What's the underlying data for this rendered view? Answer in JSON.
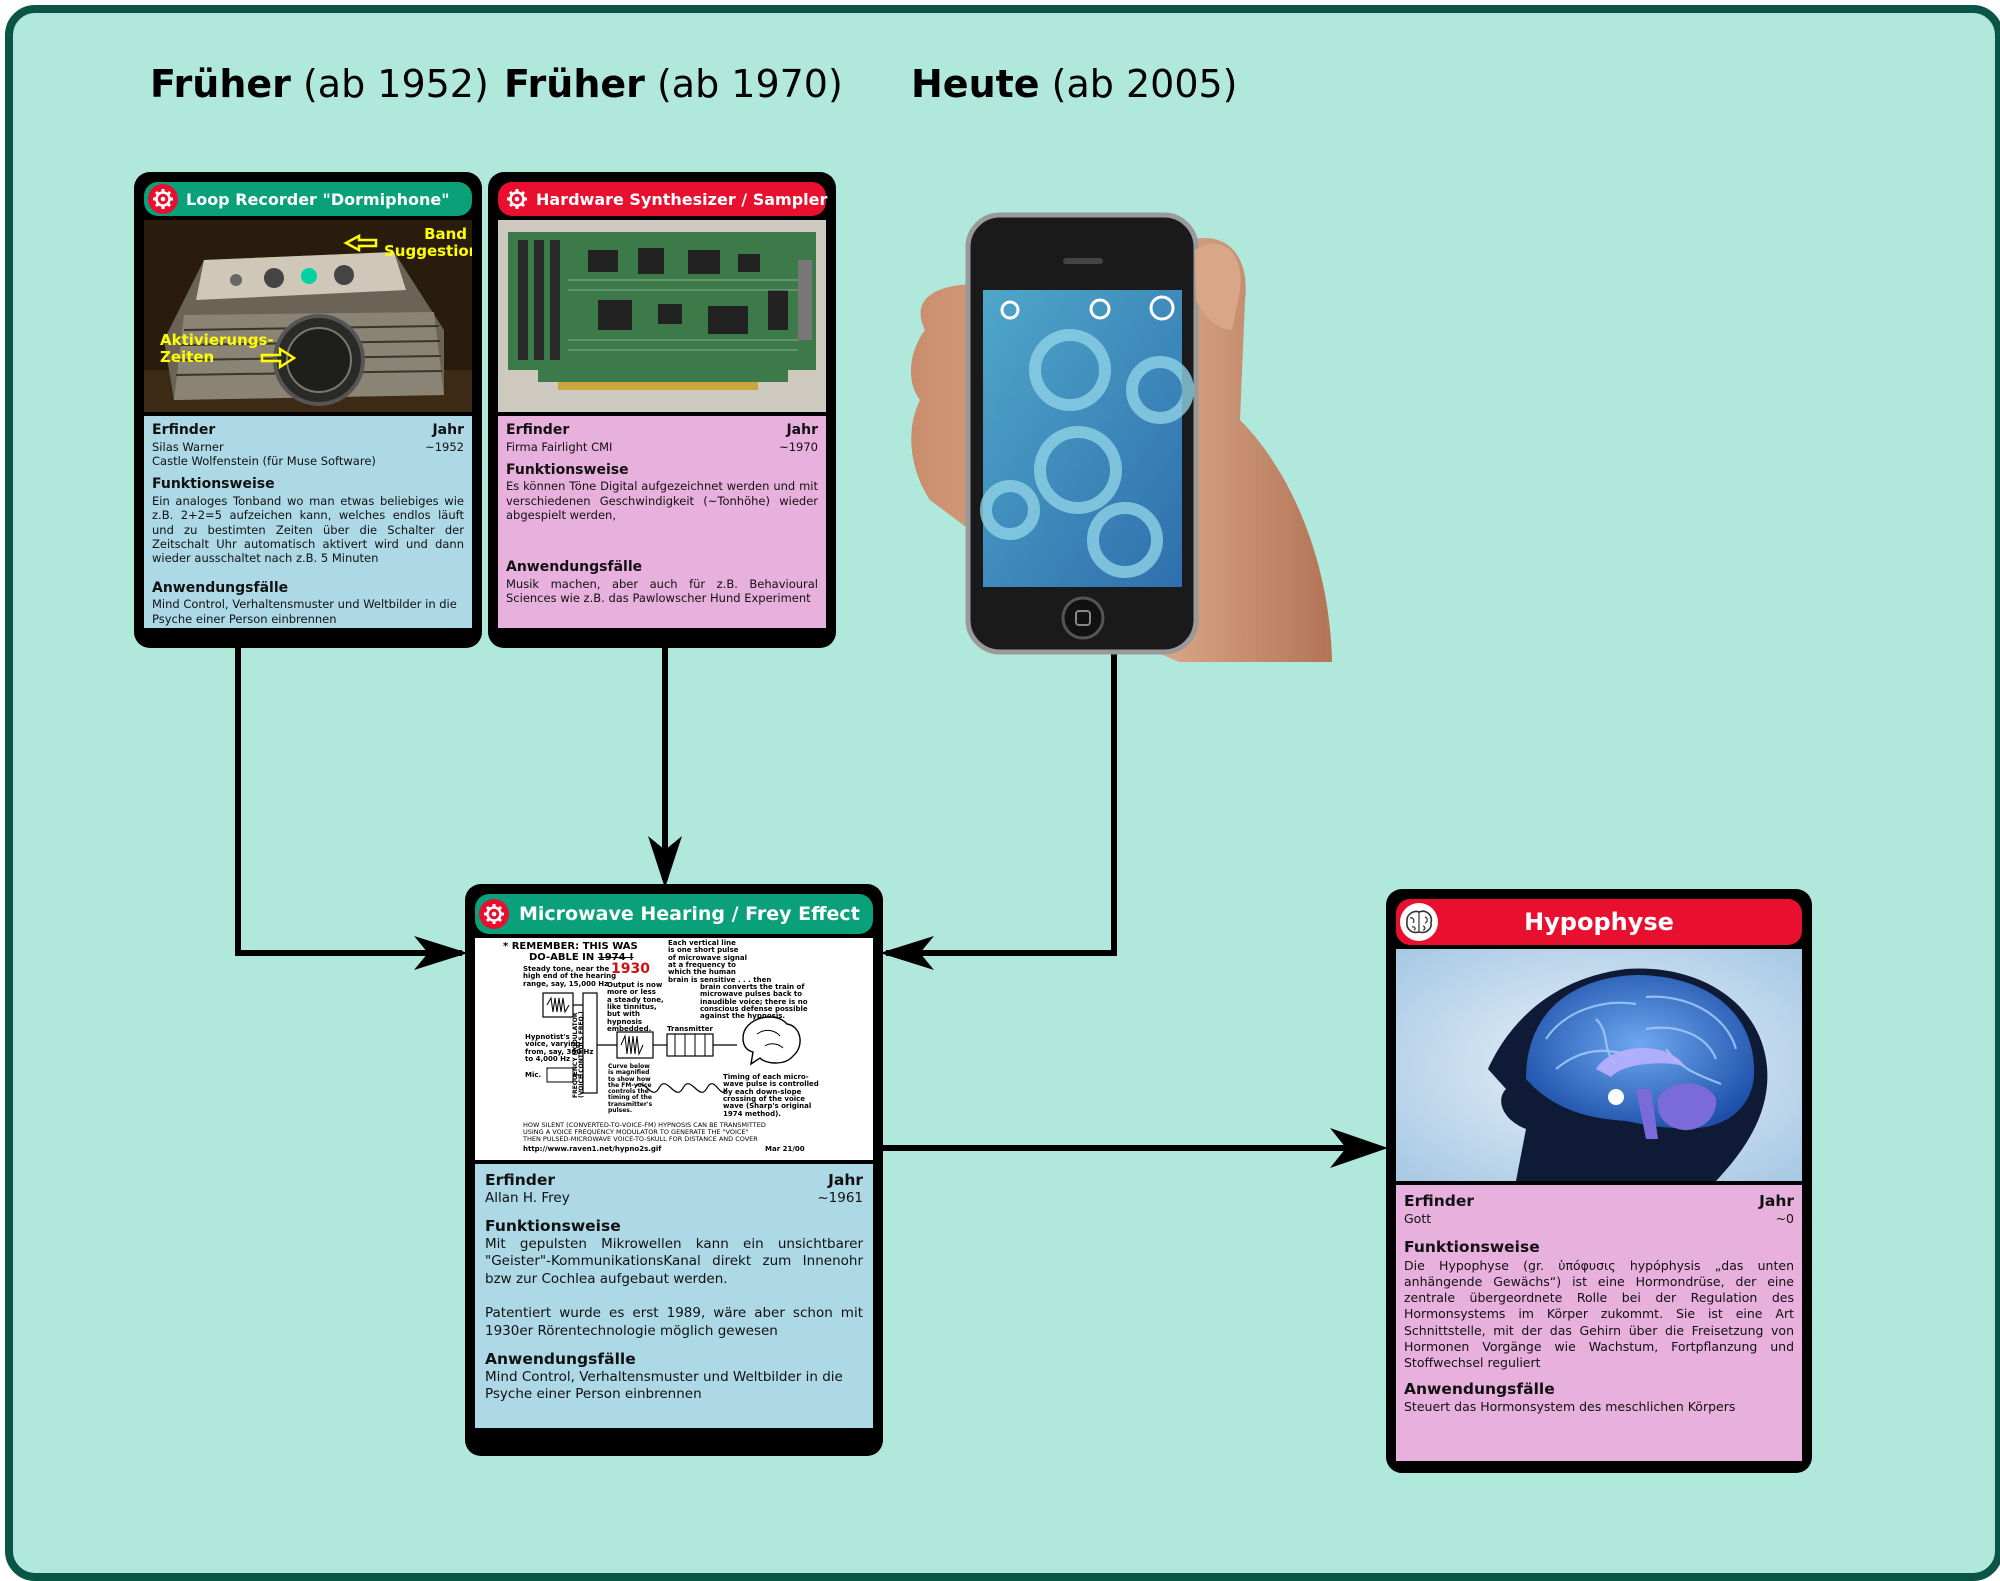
{
  "headings": {
    "h1952": {
      "bold": "Früher",
      "rest": " (ab 1952)"
    },
    "h1970": {
      "bold": "Früher",
      "rest": " (ab 1970)"
    },
    "h2005": {
      "bold": "Heute",
      "rest": " (ab 2005)"
    }
  },
  "colors": {
    "panel": "#b1e8dc",
    "border": "#0b5546",
    "green_title": "#0aa07a",
    "red_title": "#e8102e",
    "blue_info": "#add8e6",
    "pink_info": "#e8b0dc"
  },
  "card_dormiphone": {
    "title": "Loop Recorder \"Dormiphone\"",
    "annot_band": "Band mit\nSuggestionen",
    "annot_aktiv": "Aktivierungs-\nZeiten",
    "erfinder_label": "Erfinder",
    "jahr_label": "Jahr",
    "erfinder": "Silas Warner\nCastle Wolfenstein (für Muse Software)",
    "jahr": "~1952",
    "funktion_label": "Funktionsweise",
    "funktion": "Ein analoges Tonband wo man etwas beliebiges wie z.B. 2+2=5 aufzeichen kann, welches endlos läuft und zu bestimten Zeiten über die Schalter der Zeitschalt Uhr automatisch aktivert wird und dann wieder ausschaltet nach z.B. 5 Minuten",
    "anwendung_label": "Anwendungsfälle",
    "anwendung": "Mind Control, Verhaltensmuster und Weltbilder in die Psyche einer Person einbrennen"
  },
  "card_synth": {
    "title": "Hardware Synthesizer / Sampler",
    "erfinder_label": "Erfinder",
    "jahr_label": "Jahr",
    "erfinder": "Firma Fairlight CMI",
    "jahr": "~1970",
    "funktion_label": "Funktionsweise",
    "funktion": "Es können Töne Digital aufgezeichnet werden und mit verschiedenen Geschwindigkeit (~Tonhöhe) wieder abgespielt werden,",
    "anwendung_label": "Anwendungsfälle",
    "anwendung": "Musik machen, aber auch für z.B. Behavioural Sciences wie z.B. das Pawlowscher Hund Experiment"
  },
  "card_microwave": {
    "title": "Microwave Hearing / Frey Effect",
    "diagram": {
      "remember": "* REMEMBER: THIS WAS",
      "doable": "DO-ABLE IN",
      "year_struck": "1974 !",
      "year_new": "1930",
      "steady": "Steady tone, near the\nhigh end of the hearing\nrange, say, 15,000 Hz",
      "output": "Output is now\nmore or less\na steady tone,\nlike tinnitus,\nbut with\nhypnosis\nembedded.",
      "vertical": "Each vertical line\nis one short pulse\nof microwave signal\nat a frequency to\nwhich the human\nbrain is sensitive . . . then",
      "brain": "brain converts the train of\nmicrowave pulses back to\ninaudible voice; there is no\nconscious defense possible\nagainst the hypnosis.",
      "hypnotist": "Hypnotist's\nvoice, varying\nfrom, say, 300 Hz\nto 4,000 Hz",
      "mic": "Mic.",
      "modulator": "FREQUENCY MODULATOR\n(VOICE CONTROLS FREQ.)",
      "transmitter": "Transmitter",
      "curve": "Curve below\nis magnified\nto show how\nthe FM-voice\ncontrols the\ntiming of the\ntransmitter's\npulses.",
      "timing": "Timing of each micro-\nwave pulse is controlled\nby each down-slope\ncrossing of the voice\nwave (Sharp's original\n1974 method).",
      "footer": "HOW SILENT (CONVERTED-TO-VOICE-FM) HYPNOSIS CAN BE TRANSMITTED\nUSING A VOICE FREQUENCY MODULATOR TO GENERATE THE \"VOICE\"\nTHEN PULSED-MICROWAVE VOICE-TO-SKULL FOR DISTANCE AND COVER",
      "url": "http://www.raven1.net/hypno2s.gif",
      "date": "Mar 21/00"
    },
    "erfinder_label": "Erfinder",
    "jahr_label": "Jahr",
    "erfinder": "Allan H. Frey",
    "jahr": "~1961",
    "funktion_label": "Funktionsweise",
    "funktion": "Mit gepulsten Mikrowellen kann ein unsichtbarer \"Geister\"-KommunikationsKanal direkt zum Innenohr bzw zur Cochlea aufgebaut werden.",
    "patent": "Patentiert wurde es erst 1989, wäre aber schon mit 1930er Rörentechnologie möglich gewesen",
    "anwendung_label": "Anwendungsfälle",
    "anwendung": "Mind Control, Verhaltensmuster und Weltbilder in die Psyche einer Person einbrennen"
  },
  "card_hypophyse": {
    "title": "Hypophyse",
    "erfinder_label": "Erfinder",
    "jahr_label": "Jahr",
    "erfinder": "Gott",
    "jahr": "~0",
    "funktion_label": "Funktionsweise",
    "funktion": "Die Hypophyse (gr. ὑπόφυσις hypóphysis „das unten anhängende Gewächs“) ist eine Hormondrüse, der eine zentrale übergeordnete Rolle bei der Regulation des Hormonsystems im Körper zukommt. Sie ist eine Art Schnittstelle, mit der das Gehirn über die Freisetzung von Hormonen Vorgänge wie Wachstum, Fortpflanzung und Stoffwechsel reguliert",
    "anwendung_label": "Anwendungsfälle",
    "anwendung": "Steuert das Hormonsystem des meschlichen Körpers"
  }
}
